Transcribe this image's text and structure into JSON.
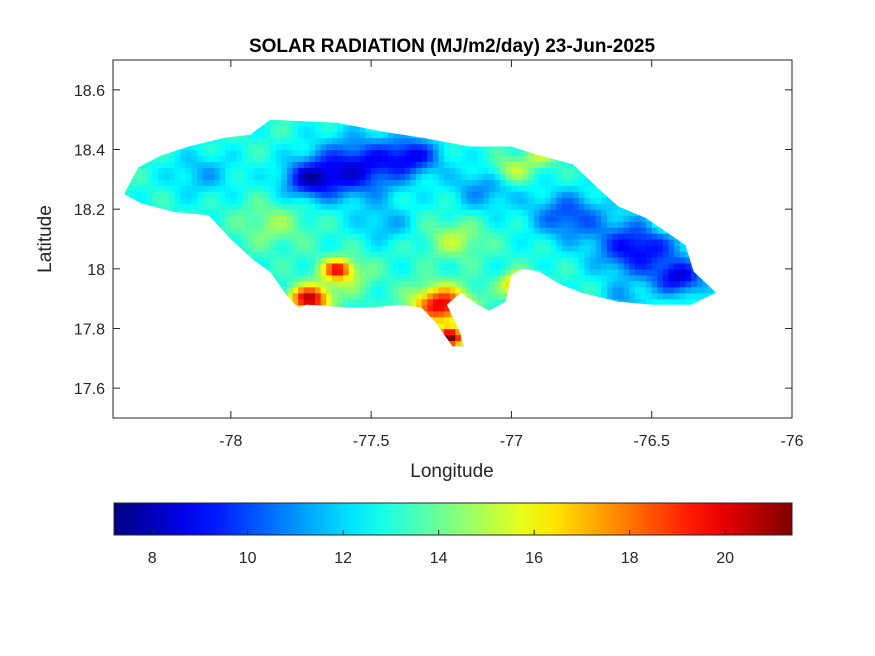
{
  "chart_data": {
    "type": "heatmap",
    "title": "SOLAR RADIATION (MJ/m2/day) 23-Jun-2025",
    "xlabel": "Longitude",
    "ylabel": "Latitude",
    "xlim": [
      -78.42,
      -76.0
    ],
    "ylim": [
      17.5,
      18.7
    ],
    "xticks": [
      -78,
      -77.5,
      -77,
      -76.5,
      -76
    ],
    "xtick_labels": [
      "-78",
      "-77.5",
      "-77",
      "-76.5",
      "-76"
    ],
    "yticks": [
      17.6,
      17.8,
      18.0,
      18.2,
      18.4,
      18.6
    ],
    "ytick_labels": [
      "17.6",
      "17.8",
      "18",
      "18.2",
      "18.4",
      "18.6"
    ],
    "grid": false,
    "colormap": "jet",
    "colorbar": {
      "orientation": "horizontal",
      "position": "below",
      "range": [
        7.2,
        21.4
      ],
      "ticks": [
        8,
        10,
        12,
        14,
        16,
        18,
        20
      ],
      "tick_labels": [
        "8",
        "10",
        "12",
        "14",
        "16",
        "18",
        "20"
      ]
    },
    "region_outline": [
      [
        -78.37,
        18.27
      ],
      [
        -78.33,
        18.34
      ],
      [
        -78.25,
        18.38
      ],
      [
        -78.15,
        18.41
      ],
      [
        -78.02,
        18.44
      ],
      [
        -77.93,
        18.45
      ],
      [
        -77.86,
        18.5
      ],
      [
        -77.62,
        18.49
      ],
      [
        -77.46,
        18.46
      ],
      [
        -77.32,
        18.44
      ],
      [
        -77.15,
        18.41
      ],
      [
        -77.0,
        18.41
      ],
      [
        -76.9,
        18.38
      ],
      [
        -76.78,
        18.35
      ],
      [
        -76.68,
        18.26
      ],
      [
        -76.62,
        18.21
      ],
      [
        -76.52,
        18.17
      ],
      [
        -76.38,
        18.08
      ],
      [
        -76.35,
        17.99
      ],
      [
        -76.27,
        17.92
      ],
      [
        -76.36,
        17.88
      ],
      [
        -76.5,
        17.88
      ],
      [
        -76.62,
        17.89
      ],
      [
        -76.75,
        17.92
      ],
      [
        -76.83,
        17.95
      ],
      [
        -76.9,
        17.99
      ],
      [
        -76.96,
        18.0
      ],
      [
        -77.0,
        17.98
      ],
      [
        -77.02,
        17.89
      ],
      [
        -77.08,
        17.86
      ],
      [
        -77.12,
        17.88
      ],
      [
        -77.18,
        17.92
      ],
      [
        -77.23,
        17.88
      ],
      [
        -77.18,
        17.78
      ],
      [
        -77.17,
        17.74
      ],
      [
        -77.21,
        17.74
      ],
      [
        -77.27,
        17.82
      ],
      [
        -77.32,
        17.87
      ],
      [
        -77.4,
        17.88
      ],
      [
        -77.49,
        17.87
      ],
      [
        -77.58,
        17.87
      ],
      [
        -77.73,
        17.88
      ],
      [
        -77.76,
        17.87
      ],
      [
        -77.8,
        17.91
      ],
      [
        -77.86,
        17.99
      ],
      [
        -77.92,
        18.03
      ],
      [
        -78.0,
        18.1
      ],
      [
        -78.08,
        18.18
      ],
      [
        -78.2,
        18.19
      ],
      [
        -78.32,
        18.22
      ],
      [
        -78.38,
        18.25
      ]
    ],
    "field_background_value": 13.0,
    "field_anomalies": [
      {
        "lon": -77.55,
        "lat": 18.34,
        "value": 8.8,
        "radius_deg": 0.16
      },
      {
        "lon": -77.72,
        "lat": 18.3,
        "value": 9.2,
        "radius_deg": 0.1
      },
      {
        "lon": -77.35,
        "lat": 18.38,
        "value": 9.5,
        "radius_deg": 0.1
      },
      {
        "lon": -76.55,
        "lat": 18.07,
        "value": 8.8,
        "radius_deg": 0.15
      },
      {
        "lon": -76.4,
        "lat": 17.97,
        "value": 9.0,
        "radius_deg": 0.09
      },
      {
        "lon": -76.8,
        "lat": 18.18,
        "value": 10.0,
        "radius_deg": 0.13
      },
      {
        "lon": -77.1,
        "lat": 18.27,
        "value": 11.0,
        "radius_deg": 0.12
      },
      {
        "lon": -78.1,
        "lat": 18.32,
        "value": 11.5,
        "radius_deg": 0.12
      },
      {
        "lon": -77.45,
        "lat": 18.15,
        "value": 11.5,
        "radius_deg": 0.1
      },
      {
        "lon": -77.85,
        "lat": 18.15,
        "value": 14.5,
        "radius_deg": 0.12
      },
      {
        "lon": -77.2,
        "lat": 18.1,
        "value": 15.0,
        "radius_deg": 0.1
      },
      {
        "lon": -77.0,
        "lat": 18.33,
        "value": 15.5,
        "radius_deg": 0.07
      },
      {
        "lon": -76.9,
        "lat": 18.38,
        "value": 15.0,
        "radius_deg": 0.06
      },
      {
        "lon": -77.6,
        "lat": 17.98,
        "value": 15.0,
        "radius_deg": 0.1
      },
      {
        "lon": -77.72,
        "lat": 17.9,
        "value": 20.5,
        "radius_deg": 0.07
      },
      {
        "lon": -77.62,
        "lat": 18.0,
        "value": 18.0,
        "radius_deg": 0.05
      },
      {
        "lon": -77.25,
        "lat": 17.88,
        "value": 20.0,
        "radius_deg": 0.1
      },
      {
        "lon": -77.22,
        "lat": 17.77,
        "value": 21.0,
        "radius_deg": 0.05
      },
      {
        "lon": -76.97,
        "lat": 17.95,
        "value": 18.5,
        "radius_deg": 0.06
      },
      {
        "lon": -76.45,
        "lat": 18.15,
        "value": 14.5,
        "radius_deg": 0.06
      },
      {
        "lon": -76.6,
        "lat": 17.9,
        "value": 11.5,
        "radius_deg": 0.08
      }
    ]
  }
}
